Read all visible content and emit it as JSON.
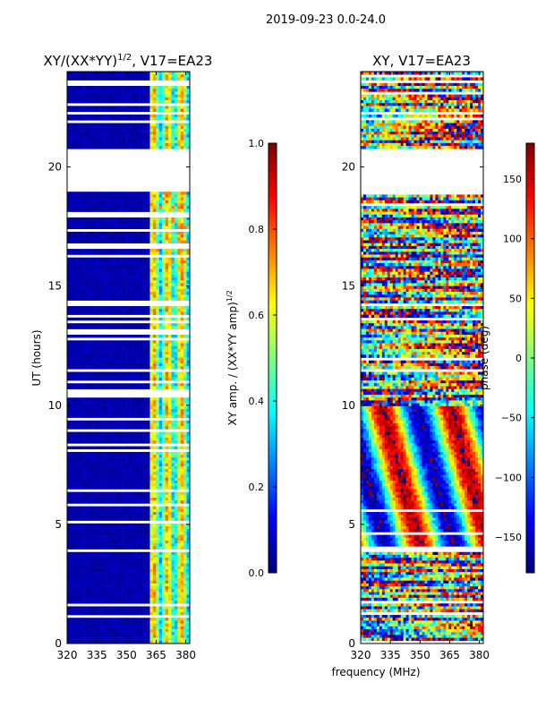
{
  "suptitle": "2019-09-23 0.0-24.0",
  "colors": {
    "jet": [
      "#00007f",
      "#0000ff",
      "#007fff",
      "#00ffff",
      "#7fff7f",
      "#ffff00",
      "#ff7f00",
      "#ff0000",
      "#7f0000"
    ],
    "background": "#ffffff",
    "frame": "#000000"
  },
  "chart_data": [
    {
      "type": "heatmap",
      "title_base": "XY/(XX*YY)",
      "title_exp": "1/2",
      "title_suffix": ", V17=EA23",
      "xlabel": "",
      "ylabel": "UT (hours)",
      "xlim": [
        320,
        382
      ],
      "ylim": [
        0,
        24
      ],
      "xticks": [
        "320",
        "335",
        "350",
        "365",
        "380"
      ],
      "xtick_values": [
        320,
        335,
        350,
        365,
        380
      ],
      "yticks": [
        "0",
        "5",
        "10",
        "15",
        "20"
      ],
      "ytick_values": [
        0,
        5,
        10,
        15,
        20
      ],
      "gaps_hours": [
        [
          19.0,
          20.8
        ]
      ],
      "colorbar": {
        "label_base": "XY amp. / (XX*YY amp)",
        "label_exp": "1/2",
        "range": [
          0,
          1
        ],
        "ticks": [
          "0.0",
          "0.2",
          "0.4",
          "0.6",
          "0.8",
          "1.0"
        ],
        "tick_values": [
          0,
          0.2,
          0.4,
          0.6,
          0.8,
          1.0
        ]
      }
    },
    {
      "type": "heatmap",
      "title": "XY, V17=EA23",
      "xlabel": "frequency (MHz)",
      "ylabel": "",
      "xlim": [
        320,
        382
      ],
      "ylim": [
        0,
        24
      ],
      "xticks": [
        "320",
        "335",
        "350",
        "365",
        "380"
      ],
      "xtick_values": [
        320,
        335,
        350,
        365,
        380
      ],
      "yticks": [
        "0",
        "5",
        "10",
        "15",
        "20"
      ],
      "ytick_values": [
        0,
        5,
        10,
        15,
        20
      ],
      "gaps_hours": [
        [
          19.0,
          20.8
        ]
      ],
      "colorbar": {
        "label": "phase (deg)",
        "range": [
          -180,
          180
        ],
        "ticks": [
          "−150",
          "−100",
          "−50",
          "0",
          "50",
          "100",
          "150"
        ],
        "tick_values": [
          -150,
          -100,
          -50,
          0,
          50,
          100,
          150
        ]
      }
    }
  ]
}
